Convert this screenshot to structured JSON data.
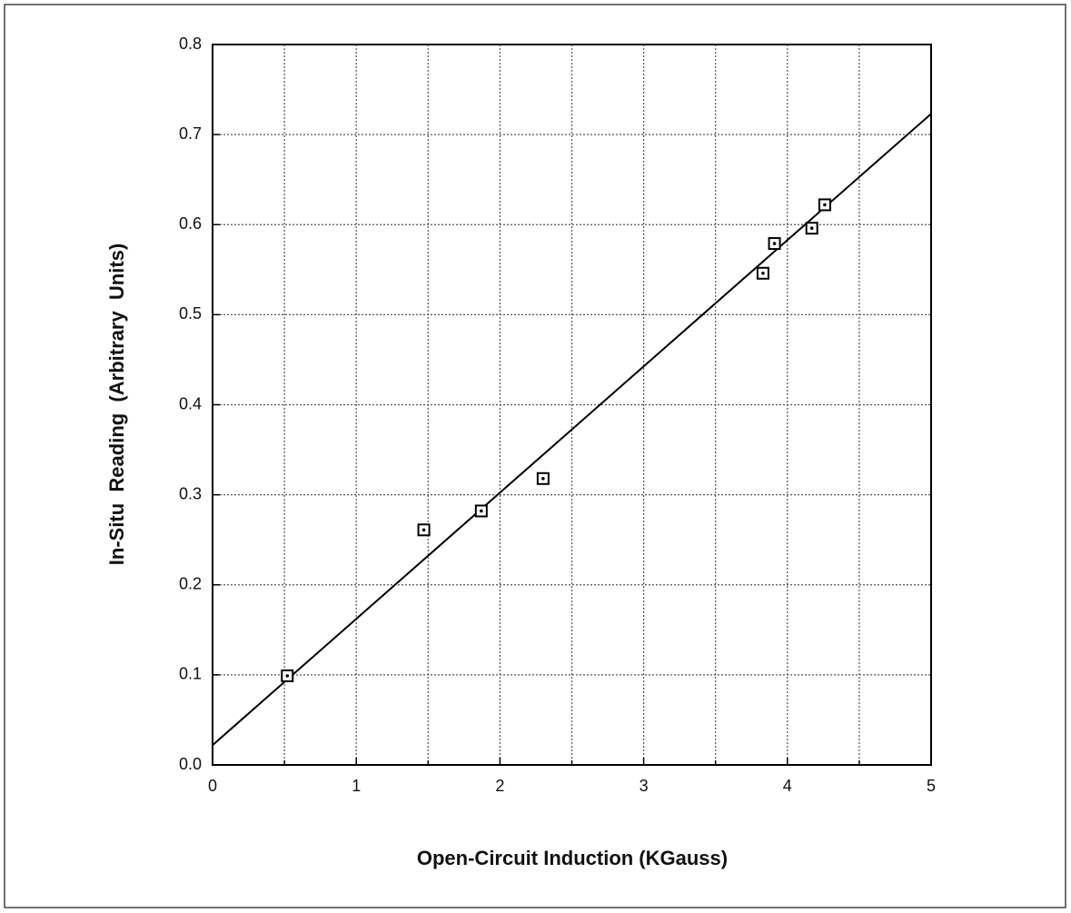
{
  "chart_data": {
    "type": "scatter",
    "x_label": "Open-Circuit Induction (KGauss)",
    "y_label": "In-Situ  Reading  (Arbitrary  Units)",
    "x": [
      0.52,
      1.47,
      1.87,
      2.3,
      3.83,
      3.91,
      4.17,
      4.26
    ],
    "values": [
      0.099,
      0.261,
      0.282,
      0.318,
      0.546,
      0.579,
      0.596,
      0.622
    ],
    "fit": {
      "x": [
        0,
        5
      ],
      "values": [
        0.022,
        0.723
      ]
    },
    "color": "#000000",
    "xlim": [
      0,
      5
    ],
    "ylim": [
      0,
      0.8
    ],
    "xticks": [
      0,
      1,
      2,
      3,
      4,
      5
    ],
    "xgrid_minor": [
      0.5,
      1.5,
      2.5,
      3.5,
      4.5
    ],
    "yticks": [
      {
        "value": 0,
        "label": "0.0"
      },
      0.1,
      0.2,
      0.3,
      0.4,
      0.5,
      0.6,
      0.7,
      0.8
    ],
    "grid": true
  }
}
